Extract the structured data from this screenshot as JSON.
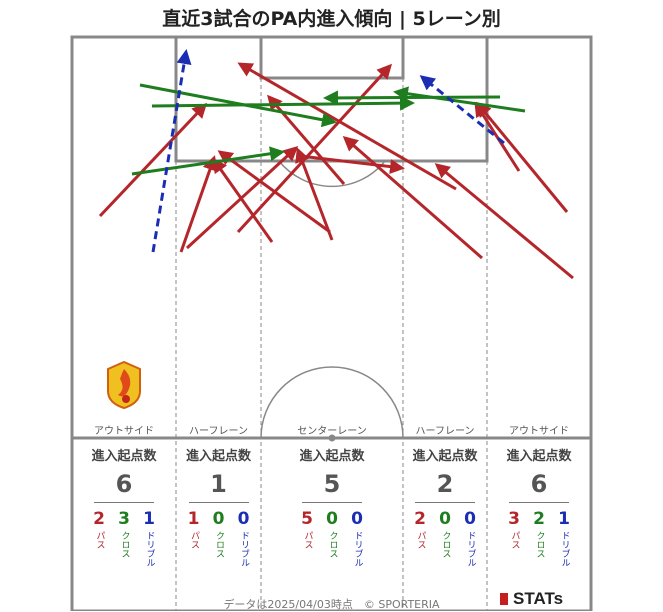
{
  "title": "直近3試合のPA内進入傾向 | 5レーン別",
  "lanes": [
    {
      "label": "アウトサイド",
      "head": "進入起点数",
      "total": "6",
      "pass": "2",
      "cross": "3",
      "dribble": "1"
    },
    {
      "label": "ハーフレーン",
      "head": "進入起点数",
      "total": "1",
      "pass": "1",
      "cross": "0",
      "dribble": "0"
    },
    {
      "label": "センターレーン",
      "head": "進入起点数",
      "total": "5",
      "pass": "5",
      "cross": "0",
      "dribble": "0"
    },
    {
      "label": "ハーフレーン",
      "head": "進入起点数",
      "total": "2",
      "pass": "2",
      "cross": "0",
      "dribble": "0"
    },
    {
      "label": "アウトサイド",
      "head": "進入起点数",
      "total": "6",
      "pass": "3",
      "cross": "2",
      "dribble": "1"
    }
  ],
  "kind_labels": {
    "pass": "パス",
    "cross": "クロス",
    "dribble": "ドリブル"
  },
  "colors": {
    "pass": "#b5262b",
    "cross": "#1e7d1e",
    "dribble": "#1b2db3",
    "line": "#888888"
  },
  "footer": "データは2025/04/03時点　© SPORTERIA",
  "brand": "STATs",
  "logo_icon": "club-crest-icon"
}
